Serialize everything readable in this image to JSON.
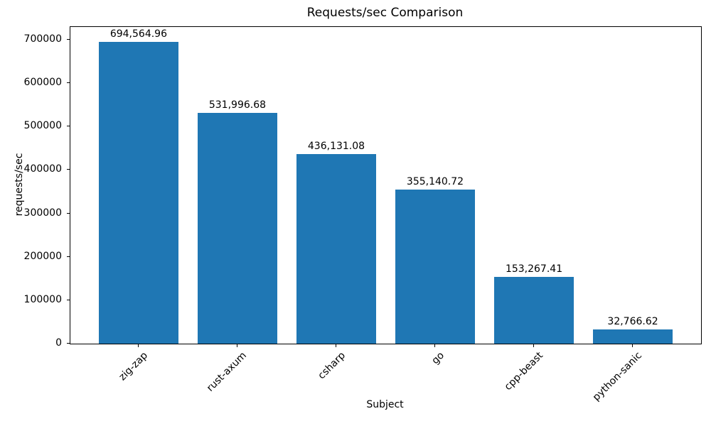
{
  "chart_data": {
    "type": "bar",
    "title": "Requests/sec Comparison",
    "xlabel": "Subject",
    "ylabel": "requests/sec",
    "categories": [
      "zig-zap",
      "rust-axum",
      "csharp",
      "go",
      "cpp-beast",
      "python-sanic"
    ],
    "values": [
      694564.96,
      531996.68,
      436131.08,
      355140.72,
      153267.41,
      32766.62
    ],
    "value_labels": [
      "694,564.96",
      "531,996.68",
      "436,131.08",
      "355,140.72",
      "153,267.41",
      "32,766.62"
    ],
    "ytick_labels": [
      "0",
      "100000",
      "200000",
      "300000",
      "400000",
      "500000",
      "600000",
      "700000"
    ],
    "yticks": [
      0,
      100000,
      200000,
      300000,
      400000,
      500000,
      600000,
      700000
    ],
    "ylim": [
      0,
      729293
    ],
    "xtick_rotation_deg": 45,
    "bar_color": "#1f77b4",
    "text_color": "#000000",
    "frame_color": "#000000",
    "background_color": "#ffffff",
    "grid": false,
    "legend": false
  }
}
